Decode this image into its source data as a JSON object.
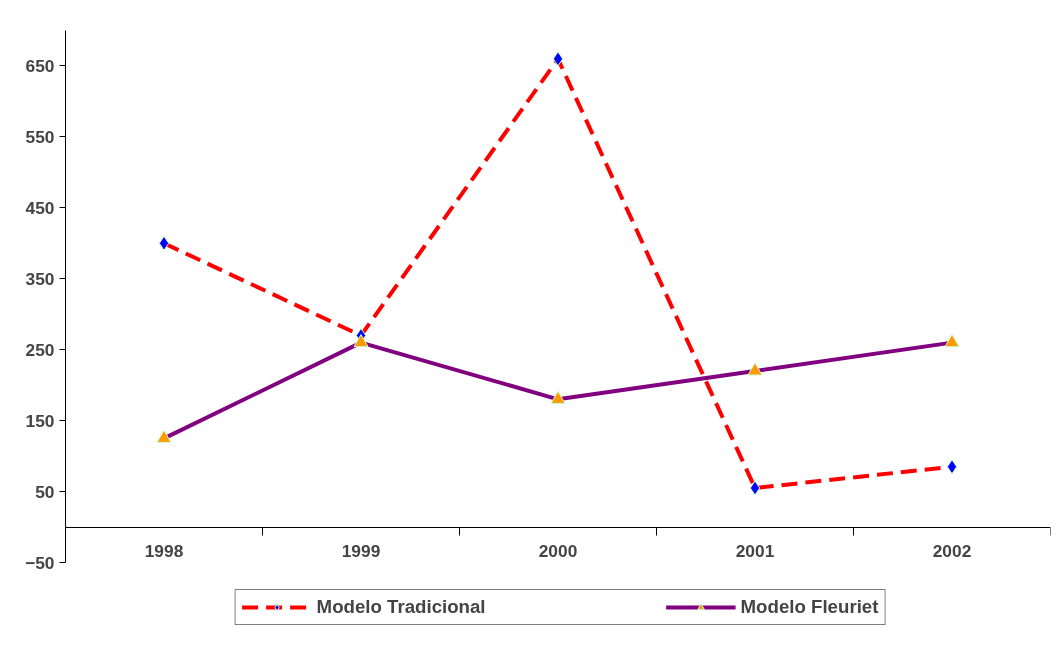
{
  "chart_data": {
    "type": "line",
    "categories": [
      "1998",
      "1999",
      "2000",
      "2001",
      "2002"
    ],
    "series": [
      {
        "name": "Modelo Tradicional",
        "color": "#ff0000",
        "marker": "diamond",
        "line_style": "dashed",
        "values": [
          400,
          270,
          660,
          55,
          85
        ]
      },
      {
        "name": "Modelo Fleuriet",
        "color": "#800080",
        "marker": "triangle",
        "line_style": "solid",
        "values": [
          125,
          260,
          180,
          220,
          260
        ]
      }
    ],
    "ylim": [
      -50,
      700
    ],
    "yticks": [
      -50,
      50,
      150,
      250,
      350,
      450,
      550,
      650
    ],
    "grid": false,
    "legend": "bottom"
  }
}
